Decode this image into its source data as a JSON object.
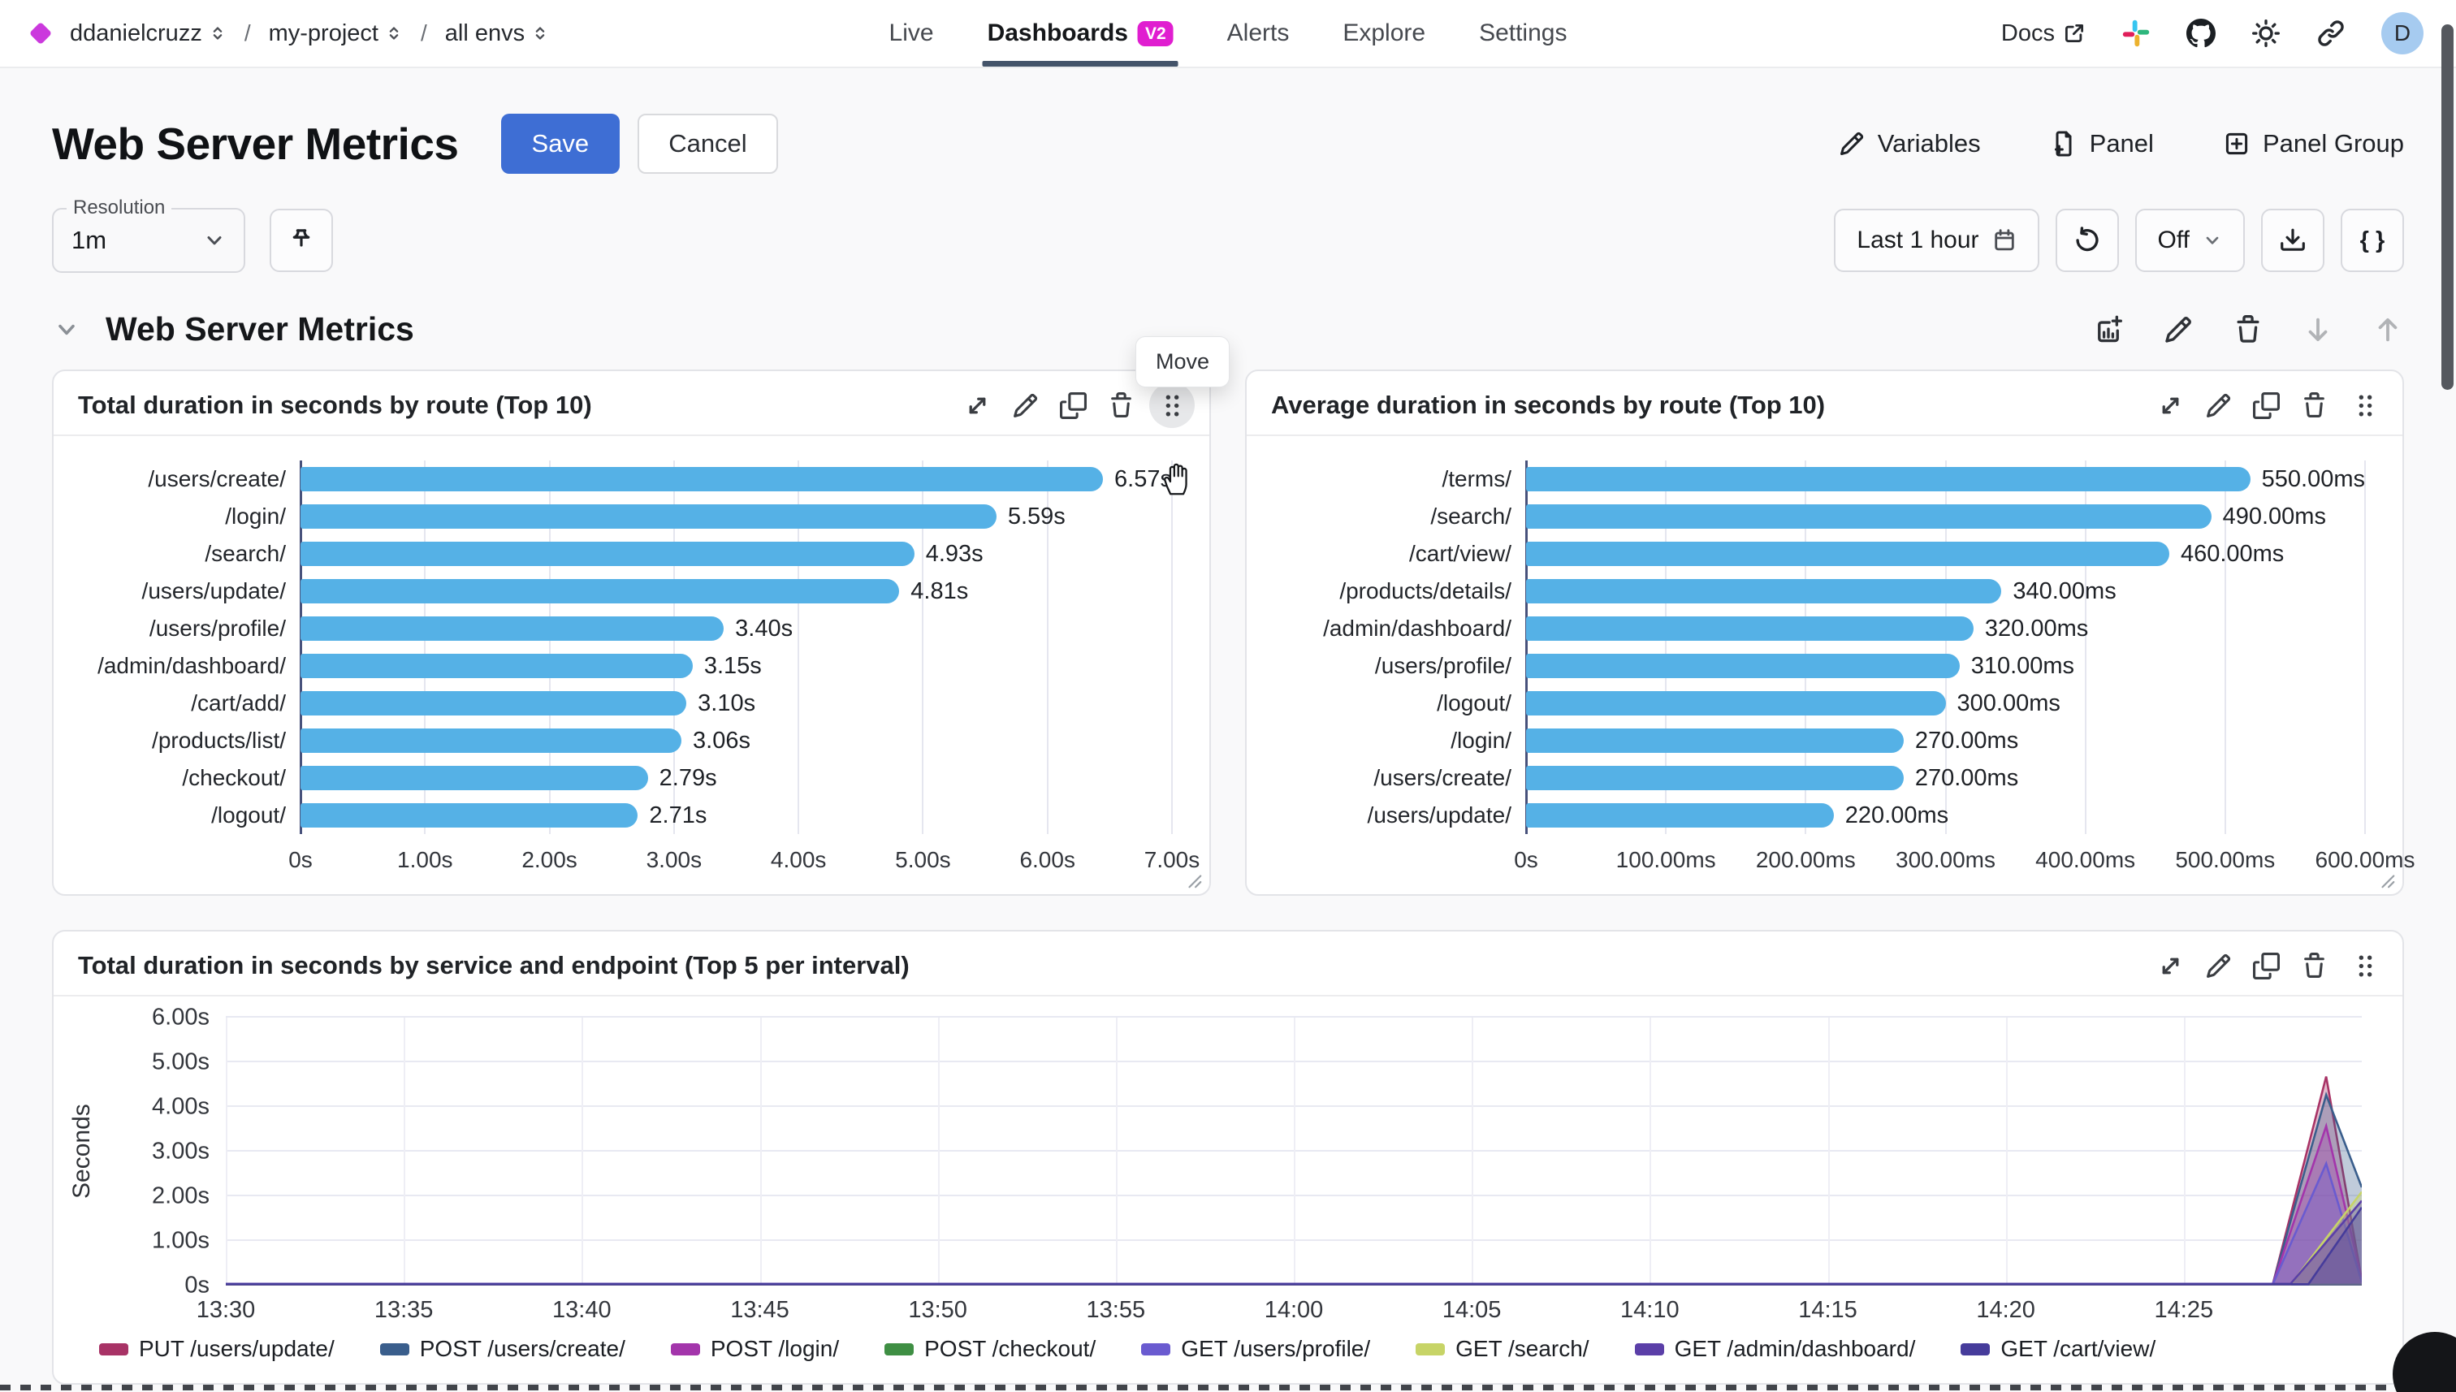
{
  "nav": {
    "org": "ddanielcruzz",
    "project": "my-project",
    "env": "all envs",
    "sep": "/",
    "tabs": [
      {
        "label": "Live",
        "active": false
      },
      {
        "label": "Dashboards",
        "active": true,
        "badge": "V2"
      },
      {
        "label": "Alerts",
        "active": false
      },
      {
        "label": "Explore",
        "active": false
      },
      {
        "label": "Settings",
        "active": false
      }
    ],
    "docs_label": "Docs",
    "avatar_initial": "D"
  },
  "header": {
    "title": "Web Server Metrics",
    "save_label": "Save",
    "cancel_label": "Cancel",
    "actions": [
      {
        "label": "Variables"
      },
      {
        "label": "Panel"
      },
      {
        "label": "Panel Group"
      }
    ]
  },
  "controls": {
    "resolution_label": "Resolution",
    "resolution_value": "1m",
    "time_range": "Last 1 hour",
    "auto_refresh": "Off",
    "braces_label": "{ }"
  },
  "section": {
    "title": "Web Server Metrics",
    "move_tooltip": "Move"
  },
  "colors": {
    "bar_blue": "#55b1e6",
    "save_blue": "#3e6ed4",
    "badge_magenta": "#e01ed0",
    "diamond_magenta": "#cb39dd",
    "tab_underline": "#44546a",
    "avatar_bg": "#a6cbf0",
    "axis_line": "#47517b"
  },
  "chart_data": [
    {
      "type": "bar",
      "orientation": "horizontal",
      "title": "Total duration in seconds by route (Top 10)",
      "categories": [
        "/users/create/",
        "/login/",
        "/search/",
        "/users/update/",
        "/users/profile/",
        "/admin/dashboard/",
        "/cart/add/",
        "/products/list/",
        "/checkout/",
        "/logout/"
      ],
      "values": [
        6.57,
        5.59,
        4.93,
        4.81,
        3.4,
        3.15,
        3.1,
        3.06,
        2.79,
        2.71
      ],
      "value_labels": [
        "6.57s",
        "5.59s",
        "4.93s",
        "4.81s",
        "3.40s",
        "3.15s",
        "3.10s",
        "3.06s",
        "2.79s",
        "2.71s"
      ],
      "xticks": [
        "0s",
        "1.00s",
        "2.00s",
        "3.00s",
        "4.00s",
        "5.00s",
        "6.00s",
        "7.00s"
      ],
      "xmax": 7,
      "grid": true
    },
    {
      "type": "bar",
      "orientation": "horizontal",
      "title": "Average duration in seconds by route (Top 10)",
      "categories": [
        "/terms/",
        "/search/",
        "/cart/view/",
        "/products/details/",
        "/admin/dashboard/",
        "/users/profile/",
        "/logout/",
        "/login/",
        "/users/create/",
        "/users/update/"
      ],
      "values": [
        550,
        490,
        460,
        340,
        320,
        310,
        300,
        270,
        270,
        220
      ],
      "value_labels": [
        "550.00ms",
        "490.00ms",
        "460.00ms",
        "340.00ms",
        "320.00ms",
        "310.00ms",
        "300.00ms",
        "270.00ms",
        "270.00ms",
        "220.00ms"
      ],
      "xticks": [
        "0s",
        "100.00ms",
        "200.00ms",
        "300.00ms",
        "400.00ms",
        "500.00ms",
        "600.00ms"
      ],
      "xmax": 600,
      "grid": true
    },
    {
      "type": "area",
      "title": "Total duration in seconds by service and endpoint (Top 5 per interval)",
      "ylabel": "Seconds",
      "yticks": [
        "0s",
        "1.00s",
        "2.00s",
        "3.00s",
        "4.00s",
        "5.00s",
        "6.00s"
      ],
      "ymax": 6,
      "xticks": [
        "13:30",
        "13:35",
        "13:40",
        "13:45",
        "13:50",
        "13:55",
        "14:00",
        "14:05",
        "14:10",
        "14:15",
        "14:20",
        "14:25"
      ],
      "x_domain_minutes": [
        0,
        60
      ],
      "legend_position": "bottom",
      "grid": true,
      "series": [
        {
          "name": "PUT /users/update/",
          "color": "#a83366",
          "points": [
            [
              0,
              0.03
            ],
            [
              57.5,
              0.03
            ],
            [
              59,
              4.68
            ],
            [
              60,
              0.12
            ]
          ]
        },
        {
          "name": "POST /users/create/",
          "color": "#3a5e8c",
          "points": [
            [
              0,
              0.03
            ],
            [
              57.5,
              0.03
            ],
            [
              59,
              4.27
            ],
            [
              60,
              2.2
            ]
          ]
        },
        {
          "name": "POST /login/",
          "color": "#a335ab",
          "points": [
            [
              0,
              0.03
            ],
            [
              57.5,
              0.03
            ],
            [
              59,
              3.57
            ],
            [
              60,
              0.15
            ]
          ]
        },
        {
          "name": "POST /checkout/",
          "color": "#3f8f44",
          "points": [
            [
              0,
              0.02
            ],
            [
              60,
              0.02
            ]
          ]
        },
        {
          "name": "GET /users/profile/",
          "color": "#6a5bd0",
          "points": [
            [
              0,
              0.03
            ],
            [
              57.5,
              0.03
            ],
            [
              59,
              2.73
            ],
            [
              60,
              0.08
            ]
          ]
        },
        {
          "name": "GET /search/",
          "color": "#c7d467",
          "points": [
            [
              0,
              0.02
            ],
            [
              58,
              0.02
            ],
            [
              60,
              2.1
            ]
          ]
        },
        {
          "name": "GET /admin/dashboard/",
          "color": "#5b3fa8",
          "points": [
            [
              0,
              0.04
            ],
            [
              58,
              0.04
            ],
            [
              60,
              1.9
            ]
          ]
        },
        {
          "name": "GET /cart/view/",
          "color": "#463c9b",
          "points": [
            [
              0,
              0.03
            ],
            [
              58.5,
              0.03
            ],
            [
              60,
              1.75
            ]
          ]
        }
      ]
    }
  ]
}
